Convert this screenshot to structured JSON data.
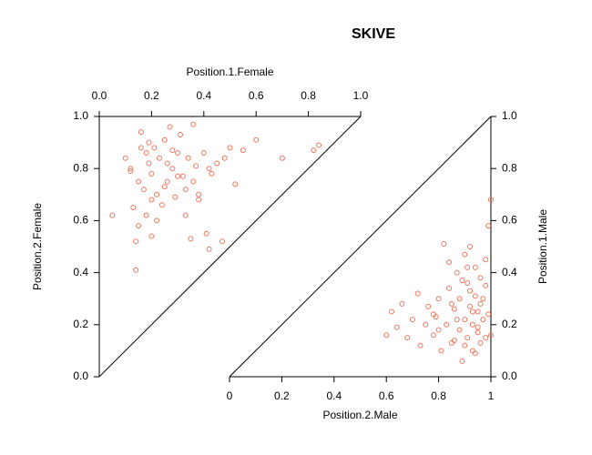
{
  "title": "SKIVE",
  "chart_data": [
    {
      "type": "scatter",
      "xlabel": "Position.1.Female",
      "ylabel": "Position.2.Female",
      "xaxis_side": "top",
      "yaxis_side": "left",
      "color": "#f0765c",
      "xlim": [
        0,
        1
      ],
      "ylim": [
        0,
        1
      ],
      "xticks": [
        {
          "value": 0,
          "label": "0.0"
        },
        0.2,
        0.4,
        0.6,
        0.8,
        {
          "value": 1,
          "label": "1.0"
        }
      ],
      "yticks": [
        {
          "value": 0,
          "label": "0.0"
        },
        0.2,
        0.4,
        0.6,
        0.8,
        {
          "value": 1,
          "label": "1.0"
        }
      ],
      "x": [
        0.05,
        0.1,
        0.12,
        0.13,
        0.14,
        0.15,
        0.15,
        0.16,
        0.17,
        0.18,
        0.19,
        0.2,
        0.2,
        0.21,
        0.22,
        0.23,
        0.24,
        0.25,
        0.26,
        0.27,
        0.28,
        0.29,
        0.3,
        0.31,
        0.32,
        0.33,
        0.34,
        0.35,
        0.36,
        0.37,
        0.38,
        0.4,
        0.41,
        0.42,
        0.43,
        0.45,
        0.47,
        0.5,
        0.52,
        0.55,
        0.6,
        0.7,
        0.82,
        0.84,
        0.14,
        0.16,
        0.19,
        0.22,
        0.26,
        0.3,
        0.33,
        0.36,
        0.42,
        0.48,
        0.2,
        0.25,
        0.12,
        0.18,
        0.28,
        0.38
      ],
      "y": [
        0.62,
        0.84,
        0.79,
        0.65,
        0.41,
        0.58,
        0.75,
        0.88,
        0.72,
        0.62,
        0.82,
        0.54,
        0.78,
        0.88,
        0.7,
        0.84,
        0.66,
        0.91,
        0.75,
        0.96,
        0.8,
        0.69,
        0.86,
        0.93,
        0.77,
        0.72,
        0.84,
        0.53,
        0.97,
        0.81,
        0.68,
        0.86,
        0.55,
        0.49,
        0.78,
        0.82,
        0.52,
        0.88,
        0.74,
        0.87,
        0.91,
        0.84,
        0.87,
        0.89,
        0.52,
        0.94,
        0.9,
        0.6,
        0.82,
        0.77,
        0.62,
        0.75,
        0.8,
        0.84,
        0.68,
        0.73,
        0.8,
        0.86,
        0.87,
        0.7
      ]
    },
    {
      "type": "scatter",
      "xlabel": "Position.2.Male",
      "ylabel": "Position.1.Male",
      "xaxis_side": "bottom",
      "yaxis_side": "right",
      "color": "#f0765c",
      "xlim": [
        0,
        1
      ],
      "ylim": [
        0,
        1
      ],
      "xticks": [
        0,
        0.2,
        0.4,
        0.6,
        0.8,
        1
      ],
      "yticks": [
        {
          "value": 0,
          "label": "0.0"
        },
        0.2,
        0.4,
        0.6,
        0.8,
        {
          "value": 1,
          "label": "1.0"
        }
      ],
      "x": [
        0.6,
        0.62,
        0.64,
        0.66,
        0.68,
        0.7,
        0.72,
        0.73,
        0.75,
        0.76,
        0.78,
        0.79,
        0.8,
        0.81,
        0.82,
        0.83,
        0.84,
        0.85,
        0.86,
        0.87,
        0.88,
        0.88,
        0.89,
        0.9,
        0.9,
        0.91,
        0.91,
        0.92,
        0.92,
        0.93,
        0.93,
        0.94,
        0.94,
        0.95,
        0.95,
        0.96,
        0.96,
        0.97,
        0.97,
        0.98,
        0.98,
        0.99,
        1.0,
        1.0,
        0.85,
        0.87,
        0.89,
        0.9,
        0.92,
        0.93,
        0.95,
        0.96,
        0.98,
        0.84,
        0.86,
        0.8,
        0.78,
        0.91,
        0.94,
        0.99
      ],
      "y": [
        0.16,
        0.25,
        0.19,
        0.28,
        0.15,
        0.22,
        0.32,
        0.12,
        0.2,
        0.27,
        0.16,
        0.23,
        0.3,
        0.1,
        0.51,
        0.2,
        0.34,
        0.13,
        0.26,
        0.4,
        0.18,
        0.3,
        0.06,
        0.22,
        0.47,
        0.15,
        0.36,
        0.27,
        0.5,
        0.1,
        0.2,
        0.31,
        0.42,
        0.17,
        0.25,
        0.13,
        0.38,
        0.22,
        0.3,
        0.15,
        0.45,
        0.24,
        0.68,
        0.16,
        0.28,
        0.22,
        0.37,
        0.12,
        0.33,
        0.25,
        0.19,
        0.28,
        0.35,
        0.44,
        0.14,
        0.18,
        0.24,
        0.42,
        0.09,
        0.58
      ]
    }
  ]
}
